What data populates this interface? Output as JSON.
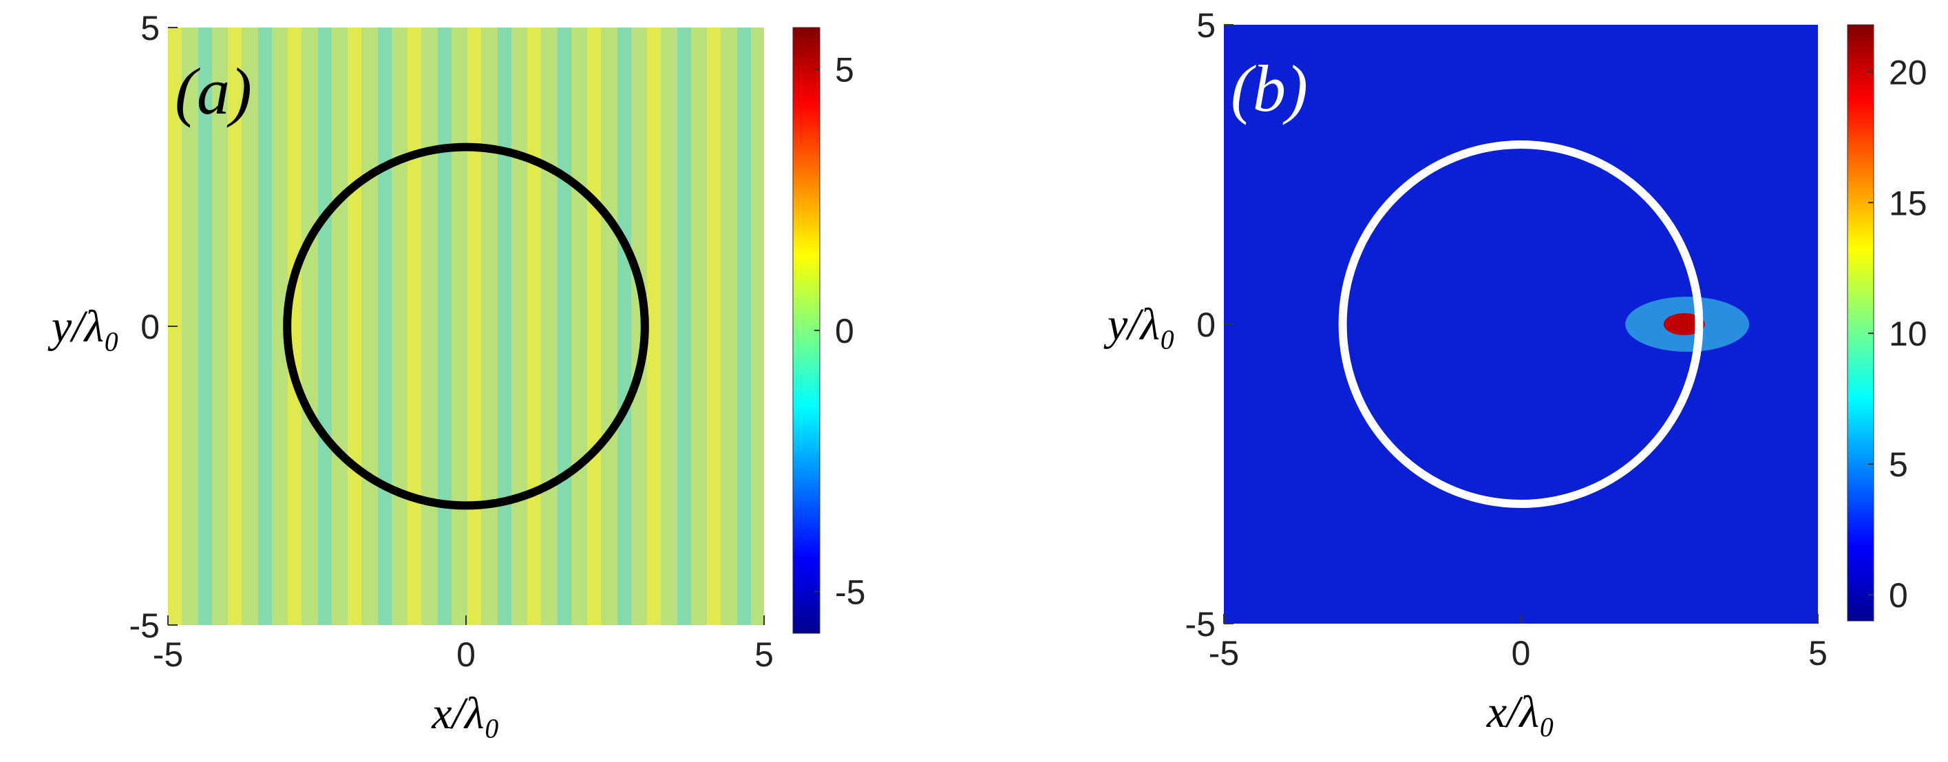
{
  "chart_data": [
    {
      "type": "heatmap",
      "label": "(a)",
      "label_color": "#000000",
      "xlabel": "x/λ₀",
      "ylabel": "y/λ₀",
      "xlim": [
        -5,
        5
      ],
      "ylim": [
        -5,
        5
      ],
      "xticks": [
        -5,
        0,
        5
      ],
      "yticks": [
        -5,
        0,
        5
      ],
      "background": "#b9e07a",
      "colormap": "jet",
      "colorbar": {
        "lim": [
          -5.8,
          5.8
        ],
        "ticks": [
          -5,
          0,
          5
        ]
      },
      "circle": {
        "center": [
          0,
          0
        ],
        "radius": 3,
        "color": "#000000"
      }
    },
    {
      "type": "heatmap",
      "label": "(b)",
      "label_color": "#ffffff",
      "xlabel": "x/λ₀",
      "ylabel": "y/λ₀",
      "xlim": [
        -5,
        5
      ],
      "ylim": [
        -5,
        5
      ],
      "xticks": [
        -5,
        0,
        5
      ],
      "yticks": [
        -5,
        0,
        5
      ],
      "background": "#0b1fd4",
      "colormap": "jet",
      "colorbar": {
        "lim": [
          -1,
          21.8
        ],
        "ticks": [
          0,
          5,
          10,
          15,
          20
        ]
      },
      "circle": {
        "center": [
          0,
          0
        ],
        "radius": 3,
        "color": "#ffffff"
      }
    }
  ]
}
